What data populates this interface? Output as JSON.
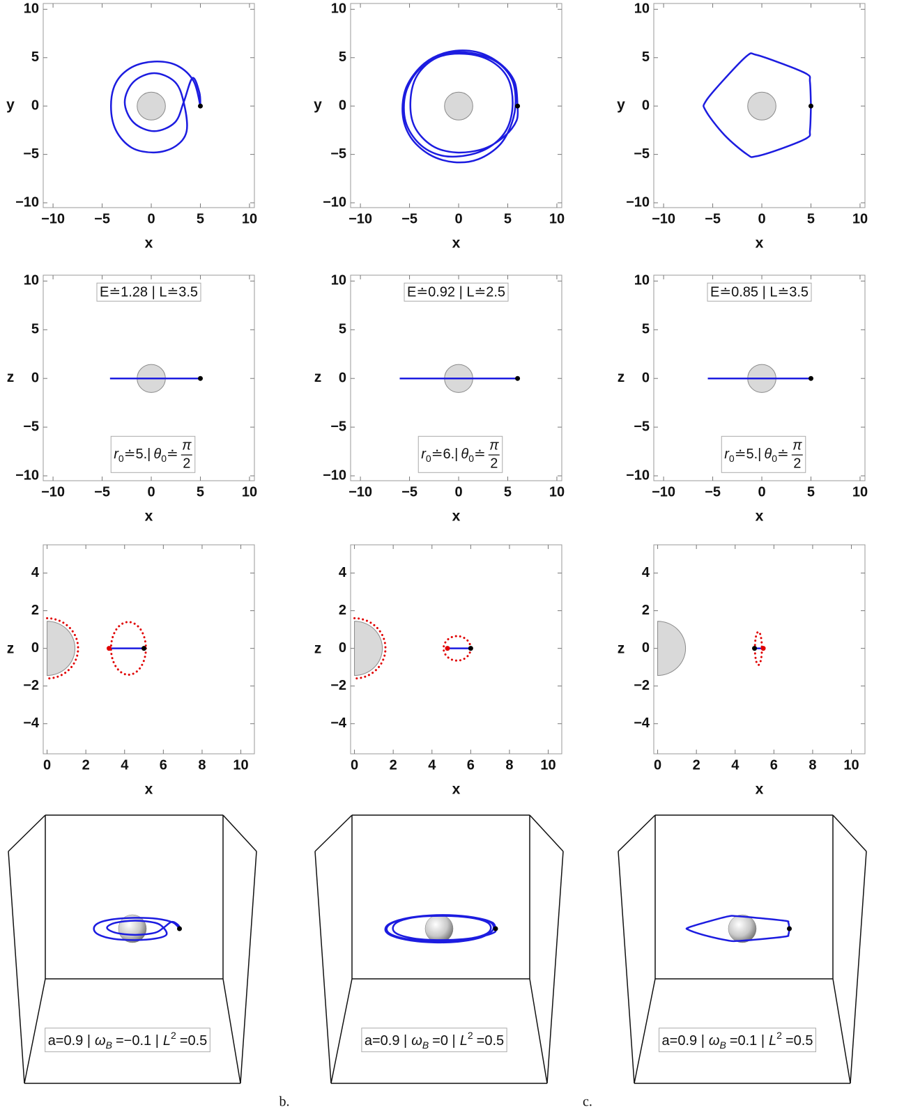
{
  "chart_data": [
    {
      "type": "line",
      "xlabel": "x",
      "ylabel": "y",
      "xlim": [
        -11,
        10.5
      ],
      "ylim": [
        -10.5,
        10.6
      ],
      "xticks": [
        {
          "value": -10,
          "label": "−10"
        },
        {
          "value": -5,
          "label": "−5"
        },
        0,
        5,
        10
      ],
      "yticks": [
        {
          "value": -10,
          "label": "−10"
        },
        {
          "value": -5,
          "label": "−5"
        },
        0,
        5,
        10
      ],
      "horizon_radius": 1.44,
      "start": [
        5,
        0
      ],
      "series": [
        {
          "color": "#1c1ce0",
          "x": [
            5,
            4.3,
            2.6,
            0.3,
            -2,
            -3.6,
            -4.1,
            -3.6,
            -2,
            0.3,
            2.4,
            3.6,
            3.3,
            2.4,
            0.3,
            -1.8,
            -2.7,
            -1.8,
            0.3,
            2.4,
            3.3,
            4.2,
            4.9,
            5
          ],
          "y": [
            0,
            2.6,
            4.2,
            4.6,
            4,
            2.4,
            0,
            -2.5,
            -4.3,
            -4.8,
            -4.2,
            -2.6,
            0.4,
            2.5,
            3.4,
            2.5,
            0.4,
            -1.7,
            -2.6,
            -1.7,
            0.4,
            2.9,
            1.4,
            0
          ]
        }
      ]
    },
    {
      "type": "line",
      "xlabel": "x",
      "ylabel": "y",
      "xlim": [
        -11,
        10.5
      ],
      "ylim": [
        -10.5,
        10.6
      ],
      "xticks": [
        {
          "value": -10,
          "label": "−10"
        },
        {
          "value": -5,
          "label": "−5"
        },
        0,
        5,
        10
      ],
      "yticks": [
        {
          "value": -10,
          "label": "−10"
        },
        {
          "value": -5,
          "label": "−5"
        },
        0,
        5,
        10
      ],
      "horizon_radius": 1.44,
      "start": [
        6,
        0
      ],
      "series": [
        {
          "color": "#1c1ce0",
          "x": [
            6,
            5.7,
            4.2,
            1.8,
            -1,
            -3.5,
            -5.3,
            -5.7,
            -4.9,
            -3,
            -0.5,
            2,
            4.2,
            5.4,
            5.8,
            5.4,
            3.8,
            1.2,
            -1.6,
            -4,
            -5.4,
            -5.4,
            -4,
            -1.8,
            0.8,
            3.2,
            4.9,
            5.5,
            5,
            3.2,
            0.6,
            -2.2,
            -4.2,
            -4.9,
            -4.5,
            -2.7,
            -0.2,
            2.6,
            4.7,
            5.9,
            6
          ],
          "y": [
            0,
            2.5,
            4.4,
            5.6,
            5.6,
            4.4,
            2,
            -0.8,
            -3.2,
            -5,
            -5.8,
            -5.5,
            -4,
            -1.8,
            0.5,
            2.8,
            4.6,
            5.5,
            5.3,
            3.8,
            1.3,
            -1.6,
            -3.9,
            -5.1,
            -5.1,
            -4.2,
            -2.4,
            0.2,
            2.9,
            4.7,
            5.4,
            5,
            3.2,
            0.6,
            -2.1,
            -4.1,
            -4.8,
            -4.4,
            -3.1,
            -1.5,
            0
          ]
        }
      ]
    },
    {
      "type": "line",
      "xlabel": "x",
      "ylabel": "y",
      "xlim": [
        -11,
        10.5
      ],
      "ylim": [
        -10.5,
        10.6
      ],
      "xticks": [
        {
          "value": -10,
          "label": "−10"
        },
        {
          "value": -5,
          "label": "−5"
        },
        0,
        5,
        10
      ],
      "yticks": [
        {
          "value": -10,
          "label": "−10"
        },
        {
          "value": -5,
          "label": "−5"
        },
        0,
        5,
        10
      ],
      "horizon_radius": 1.44,
      "start": [
        5,
        0
      ],
      "series": [
        {
          "color": "#1c1ce0",
          "x": [
            5,
            4.9,
            4.6,
            2,
            -0.6,
            -1.5,
            -3.8,
            -5.7,
            -5.7,
            -3.8,
            -1.5,
            -0.6,
            2,
            4.6,
            4.9,
            5
          ],
          "y": [
            0,
            2.5,
            3.3,
            4.4,
            5.3,
            5.2,
            2.8,
            0.5,
            -0.5,
            -3,
            -5,
            -5.2,
            -4.4,
            -3.3,
            -2.5,
            0
          ]
        }
      ]
    },
    {
      "type": "line",
      "xlabel": "x",
      "ylabel": "z",
      "xlim": [
        -11,
        10.5
      ],
      "ylim": [
        -10.5,
        10.6
      ],
      "xticks": [
        {
          "value": -10,
          "label": "−10"
        },
        {
          "value": -5,
          "label": "−5"
        },
        0,
        5,
        10
      ],
      "yticks": [
        {
          "value": -10,
          "label": "−10"
        },
        {
          "value": -5,
          "label": "−5"
        },
        0,
        5,
        10
      ],
      "horizon_radius": 1.44,
      "start": [
        5,
        0
      ],
      "series": [
        {
          "color": "#1c1ce0",
          "x": [
            -4.2,
            5
          ],
          "y": [
            0,
            0
          ]
        }
      ],
      "annotation_top": "E≐1.28 | L≐3.5",
      "annotation_bottom": {
        "r": "r",
        "r_sub": "0",
        "r_value": "≐5.|",
        "theta": "θ",
        "theta_sub": "0",
        "theta_value": "≐",
        "num": "π",
        "den": "2"
      }
    },
    {
      "type": "line",
      "xlabel": "x",
      "ylabel": "z",
      "xlim": [
        -11,
        10.5
      ],
      "ylim": [
        -10.5,
        10.6
      ],
      "xticks": [
        {
          "value": -10,
          "label": "−10"
        },
        {
          "value": -5,
          "label": "−5"
        },
        0,
        5,
        10
      ],
      "yticks": [
        {
          "value": -10,
          "label": "−10"
        },
        {
          "value": -5,
          "label": "−5"
        },
        0,
        5,
        10
      ],
      "horizon_radius": 1.44,
      "start": [
        6,
        0
      ],
      "series": [
        {
          "color": "#1c1ce0",
          "x": [
            -6,
            6
          ],
          "y": [
            0,
            0
          ]
        }
      ],
      "annotation_top": "E≐0.92 | L≐2.5",
      "annotation_bottom": {
        "r": "r",
        "r_sub": "0",
        "r_value": "≐6.|",
        "theta": "θ",
        "theta_sub": "0",
        "theta_value": "≐",
        "num": "π",
        "den": "2"
      }
    },
    {
      "type": "line",
      "xlabel": "x",
      "ylabel": "z",
      "xlim": [
        -11,
        10.5
      ],
      "ylim": [
        -10.5,
        10.6
      ],
      "xticks": [
        {
          "value": -10,
          "label": "−10"
        },
        {
          "value": -5,
          "label": "−5"
        },
        0,
        5,
        10
      ],
      "yticks": [
        {
          "value": -10,
          "label": "−10"
        },
        {
          "value": -5,
          "label": "−5"
        },
        0,
        5,
        10
      ],
      "horizon_radius": 1.44,
      "start": [
        5,
        0
      ],
      "series": [
        {
          "color": "#1c1ce0",
          "x": [
            -5.5,
            5
          ],
          "y": [
            0,
            0
          ]
        }
      ],
      "annotation_top": "E≐0.85 | L≐3.5",
      "annotation_bottom": {
        "r": "r",
        "r_sub": "0",
        "r_value": "≐5.|",
        "theta": "θ",
        "theta_sub": "0",
        "theta_value": "≐",
        "num": "π",
        "den": "2"
      }
    },
    {
      "type": "meridional",
      "xlabel": "x",
      "ylabel": "z",
      "xlim": [
        -0.2,
        10.7
      ],
      "ylim": [
        -5.6,
        5.5
      ],
      "xticks": [
        0,
        2,
        4,
        6,
        8,
        10
      ],
      "yticks": [
        {
          "value": -4,
          "label": "−4"
        },
        {
          "value": -2,
          "label": "−2"
        },
        0,
        2,
        4
      ],
      "horizon_radius": 1.44,
      "boundary_radius": 1.6,
      "boundary_color": "#e00000",
      "ellipse": {
        "cx": 4.2,
        "cz": 0,
        "rx": 0.9,
        "rz": 1.4
      },
      "series": [
        {
          "color": "#1c1ce0",
          "x": [
            3.2,
            5
          ],
          "y": [
            0,
            0
          ]
        }
      ],
      "points": [
        {
          "x": 5,
          "y": 0,
          "color": "#000000"
        },
        {
          "x": 3.2,
          "y": 0,
          "color": "#e00000"
        }
      ]
    },
    {
      "type": "meridional",
      "xlabel": "x",
      "ylabel": "z",
      "xlim": [
        -0.2,
        10.7
      ],
      "ylim": [
        -5.6,
        5.5
      ],
      "xticks": [
        0,
        2,
        4,
        6,
        8,
        10
      ],
      "yticks": [
        {
          "value": -4,
          "label": "−4"
        },
        {
          "value": -2,
          "label": "−2"
        },
        0,
        2,
        4
      ],
      "horizon_radius": 1.44,
      "boundary_radius": 1.6,
      "boundary_color": "#e00000",
      "ellipse": {
        "cx": 5.3,
        "cz": 0,
        "rx": 0.7,
        "rz": 0.65
      },
      "series": [
        {
          "color": "#1c1ce0",
          "x": [
            4.8,
            6
          ],
          "y": [
            0,
            0
          ]
        }
      ],
      "points": [
        {
          "x": 6,
          "y": 0,
          "color": "#000000"
        },
        {
          "x": 4.8,
          "y": 0,
          "color": "#e00000"
        }
      ]
    },
    {
      "type": "meridional",
      "xlabel": "x",
      "ylabel": "z",
      "xlim": [
        -0.2,
        10.7
      ],
      "ylim": [
        -5.6,
        5.5
      ],
      "xticks": [
        0,
        2,
        4,
        6,
        8,
        10
      ],
      "yticks": [
        {
          "value": -4,
          "label": "−4"
        },
        {
          "value": -2,
          "label": "−2"
        },
        0,
        2,
        4
      ],
      "horizon_radius": 1.44,
      "boundary_color": "#e00000",
      "ellipse": {
        "cx": 5.2,
        "cz": 0,
        "rx": 0.18,
        "rz": 0.88
      },
      "series": [
        {
          "color": "#1c1ce0",
          "x": [
            5,
            5.45
          ],
          "y": [
            0,
            0
          ]
        }
      ],
      "points": [
        {
          "x": 5,
          "y": 0,
          "color": "#000000"
        },
        {
          "x": 5.45,
          "y": 0,
          "color": "#e00000"
        }
      ]
    },
    {
      "type": "box3d",
      "annotation": {
        "a": "a=0.9 |",
        "omega": "ω",
        "omega_sub": "B",
        "omega_value": "=−0.1 |",
        "L": "L",
        "L_sup": "2",
        "L_value": "=0.5"
      }
    },
    {
      "type": "box3d",
      "annotation": {
        "a": "a=0.9 |",
        "omega": "ω",
        "omega_sub": "B",
        "omega_value": "=0 |",
        "L": "L",
        "L_sup": "2",
        "L_value": "=0.5"
      }
    },
    {
      "type": "box3d",
      "annotation": {
        "a": "a=0.9 |",
        "omega": "ω",
        "omega_sub": "B",
        "omega_value": "=0.1 |",
        "L": "L",
        "L_sup": "2",
        "L_value": "=0.5"
      }
    }
  ],
  "captions": [
    "b.",
    "c."
  ]
}
